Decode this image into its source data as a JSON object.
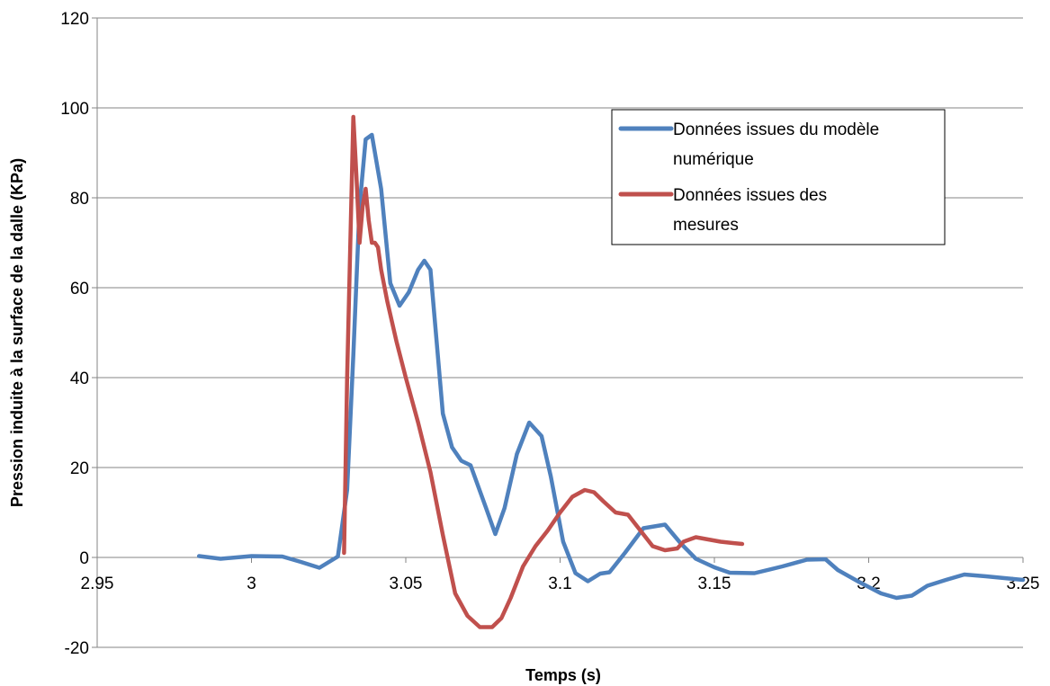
{
  "chart_data": {
    "type": "line",
    "xlabel": "Temps (s)",
    "ylabel": "Pression induite à la surface de la dalle (KPa)",
    "xlim": [
      2.95,
      3.25
    ],
    "ylim": [
      -20,
      120
    ],
    "x_ticks": [
      "2.95",
      "3",
      "3.05",
      "3.1",
      "3.15",
      "3.2",
      "3.25"
    ],
    "y_ticks": [
      "-20",
      "0",
      "20",
      "40",
      "60",
      "80",
      "100",
      "120"
    ],
    "grid": "horizontal",
    "legend_position": "top-right",
    "series": [
      {
        "name": "Données issues du modèle numérique",
        "legend_lines": [
          "Données issues du modèle",
          "numérique"
        ],
        "color": "#4F81BD",
        "x": [
          2.983,
          2.99,
          3.0,
          3.01,
          3.016,
          3.022,
          3.028,
          3.031,
          3.033,
          3.035,
          3.037,
          3.039,
          3.042,
          3.045,
          3.048,
          3.051,
          3.054,
          3.056,
          3.058,
          3.06,
          3.062,
          3.065,
          3.068,
          3.071,
          3.076,
          3.079,
          3.082,
          3.086,
          3.09,
          3.094,
          3.097,
          3.101,
          3.105,
          3.109,
          3.113,
          3.116,
          3.121,
          3.127,
          3.134,
          3.139,
          3.144,
          3.15,
          3.155,
          3.163,
          3.172,
          3.18,
          3.186,
          3.19,
          3.197,
          3.204,
          3.209,
          3.214,
          3.219,
          3.225,
          3.231,
          3.238,
          3.25
        ],
        "y": [
          0.3,
          -0.3,
          0.3,
          0.2,
          -1.0,
          -2.3,
          0.2,
          15.0,
          45.0,
          78.0,
          93.0,
          94.0,
          82.0,
          61.0,
          56.0,
          59.0,
          64.0,
          66.0,
          64.0,
          48.0,
          32.0,
          24.5,
          21.5,
          20.5,
          11.0,
          5.2,
          11.0,
          23.0,
          30.0,
          27.0,
          18.0,
          3.5,
          -3.5,
          -5.3,
          -3.6,
          -3.3,
          1.0,
          6.5,
          7.3,
          3.2,
          -0.3,
          -2.2,
          -3.4,
          -3.5,
          -2.0,
          -0.5,
          -0.4,
          -2.8,
          -5.5,
          -8.0,
          -9.0,
          -8.5,
          -6.3,
          -5.0,
          -3.8,
          -4.2,
          -5.0
        ]
      },
      {
        "name": "Données issues des mesures",
        "legend_lines": [
          "Données issues des",
          "mesures"
        ],
        "color": "#C0504D",
        "x": [
          3.03,
          3.031,
          3.033,
          3.034,
          3.035,
          3.036,
          3.037,
          3.038,
          3.039,
          3.04,
          3.041,
          3.042,
          3.044,
          3.047,
          3.05,
          3.054,
          3.058,
          3.062,
          3.066,
          3.07,
          3.074,
          3.078,
          3.081,
          3.084,
          3.088,
          3.092,
          3.096,
          3.1,
          3.104,
          3.108,
          3.111,
          3.114,
          3.118,
          3.122,
          3.126,
          3.13,
          3.134,
          3.138,
          3.14,
          3.144,
          3.148,
          3.152,
          3.156,
          3.159
        ],
        "y": [
          1.0,
          40.0,
          98.0,
          85.0,
          70.0,
          78.0,
          82.0,
          75.0,
          70.0,
          70.0,
          69.0,
          64.0,
          57.0,
          48.0,
          40.0,
          30.0,
          19.0,
          5.0,
          -8.0,
          -13.0,
          -15.5,
          -15.5,
          -13.5,
          -9.0,
          -2.0,
          2.5,
          6.0,
          10.0,
          13.5,
          15.0,
          14.5,
          12.5,
          10.0,
          9.5,
          6.0,
          2.5,
          1.6,
          2.0,
          3.5,
          4.5,
          4.0,
          3.5,
          3.2,
          3.0
        ]
      }
    ]
  }
}
